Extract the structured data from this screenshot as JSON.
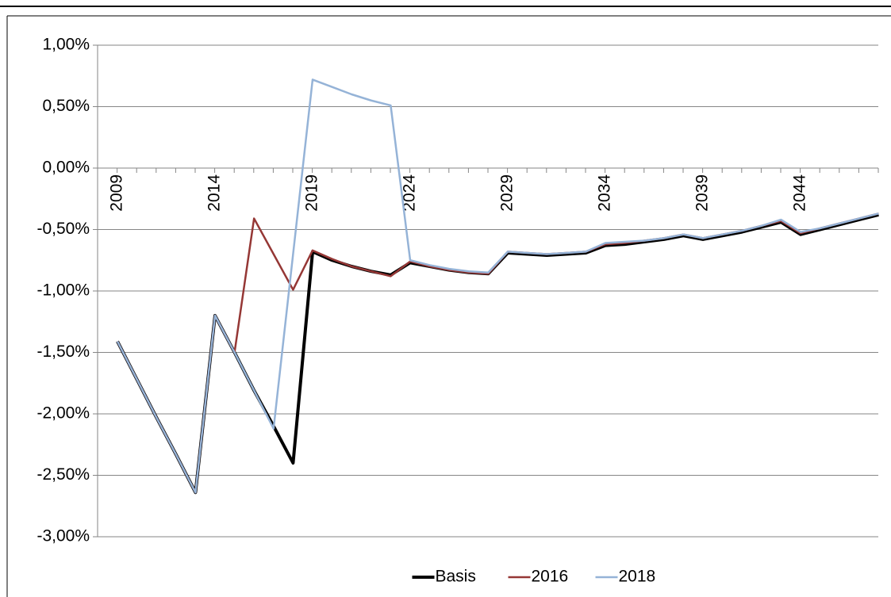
{
  "chart_data": {
    "type": "line",
    "categories": [
      "2009",
      null,
      null,
      null,
      null,
      "2014",
      null,
      null,
      null,
      null,
      "2019",
      null,
      null,
      null,
      null,
      "2024",
      null,
      null,
      null,
      null,
      "2029",
      null,
      null,
      null,
      null,
      "2034",
      null,
      null,
      null,
      null,
      "2039",
      null,
      null,
      null,
      null,
      "2044",
      null,
      null,
      null,
      null
    ],
    "series": [
      {
        "name": "Basis",
        "color": "#000000",
        "values": [
          -1.41,
          -1.72,
          -2.03,
          -2.33,
          -2.64,
          -1.2,
          -1.5,
          -1.81,
          -2.1,
          -2.4,
          -0.68,
          -0.75,
          -0.8,
          -0.84,
          -0.87,
          -0.77,
          -0.8,
          -0.83,
          -0.85,
          -0.86,
          -0.69,
          -0.7,
          -0.71,
          -0.7,
          -0.69,
          -0.63,
          -0.62,
          -0.6,
          -0.58,
          -0.55,
          -0.58,
          -0.55,
          -0.52,
          -0.48,
          -0.44,
          -0.54,
          -0.5,
          -0.46,
          -0.42,
          -0.38
        ]
      },
      {
        "name": "2016",
        "color": "#953735",
        "values": [
          -1.41,
          -1.72,
          -2.03,
          -2.33,
          -2.64,
          -1.2,
          -1.5,
          -0.41,
          -0.7,
          -0.99,
          -0.67,
          -0.74,
          -0.8,
          -0.84,
          -0.88,
          -0.76,
          -0.8,
          -0.83,
          -0.85,
          -0.86,
          -0.68,
          -0.69,
          -0.7,
          -0.69,
          -0.68,
          -0.62,
          -0.61,
          -0.59,
          -0.57,
          -0.54,
          -0.57,
          -0.54,
          -0.51,
          -0.47,
          -0.43,
          -0.53,
          -0.49,
          -0.45,
          -0.41,
          -0.37
        ]
      },
      {
        "name": "2018",
        "color": "#95b3d7",
        "values": [
          -1.41,
          -1.72,
          -2.03,
          -2.33,
          -2.64,
          -1.2,
          -1.5,
          -1.81,
          -2.12,
          -0.7,
          0.72,
          0.66,
          0.6,
          0.55,
          0.51,
          -0.75,
          -0.79,
          -0.82,
          -0.84,
          -0.85,
          -0.68,
          -0.69,
          -0.7,
          -0.69,
          -0.68,
          -0.61,
          -0.6,
          -0.59,
          -0.57,
          -0.54,
          -0.57,
          -0.54,
          -0.51,
          -0.47,
          -0.42,
          -0.52,
          -0.49,
          -0.45,
          -0.41,
          -0.37
        ]
      }
    ],
    "ylim": [
      -3,
      1
    ],
    "yticks": [
      {
        "value": -3,
        "label": "-3,00%"
      },
      {
        "value": -2.5,
        "label": "-2,50%"
      },
      {
        "value": -2,
        "label": "-2,00%"
      },
      {
        "value": -1.5,
        "label": "-1,50%"
      },
      {
        "value": -1,
        "label": "-1,00%"
      },
      {
        "value": -0.5,
        "label": "-0,50%"
      },
      {
        "value": 0,
        "label": "0,00%"
      },
      {
        "value": 0.5,
        "label": "0,50%"
      },
      {
        "value": 1,
        "label": "1,00%"
      }
    ],
    "grid": true,
    "legend": "bottom"
  }
}
